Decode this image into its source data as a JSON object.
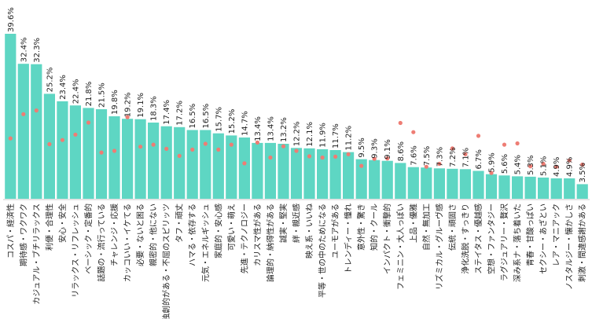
{
  "chart_data": {
    "type": "bar",
    "value_suffix": "%",
    "bar_color": "#5ED6C3",
    "marker_color": "#EE7D74",
    "ylim": [
      0,
      40
    ],
    "grid": false,
    "categories": [
      "コスパ・経済性",
      "期待感・ワクワク",
      "カジュアル・ブチリラックス",
      "利便・合理性",
      "安心・安全",
      "リラックス・リフレッシュ",
      "ベーシック・定番的",
      "話題の・流行っている",
      "チャレンジ・応援",
      "カッコいい・イケてる",
      "必要・ないと困る",
      "親密的・他にない",
      "独創的がある・不屈のスピリッツ",
      "タフ・頑丈",
      "ハマる・依存する",
      "元気・エネルギッシュ",
      "家庭的・安心感",
      "可愛い・萌え",
      "先進・テクノロジー",
      "カリスマ性がある",
      "論理的・納得性がある",
      "誠実・堅実",
      "絆・親近感",
      "映え系・いいね",
      "平等・世の中のためになる",
      "ユーモアがある",
      "トレンディー・憧れ",
      "意外性・驚き",
      "知的・クール",
      "インパクト・衝撃的",
      "フェミニン・大人っぽい",
      "上品・優雅",
      "自然・無加工",
      "リズミカル・グルーヴ感",
      "伝統・頑固さ",
      "浄化洗脱・すっきり",
      "ステイタス・優越感",
      "空想・ファンタジー",
      "ラグジュアリー・贅沢",
      "深み系ナ・落ち着いた",
      "青春・甘酸っぱい",
      "セクシー・あざとい",
      "レア・マニアック",
      "ノスタルジー・懐かしさ",
      "刺激・間違感謝かある"
    ],
    "values": [
      39.6,
      32.4,
      32.3,
      25.2,
      23.4,
      22.4,
      21.8,
      21.5,
      19.8,
      19.2,
      19.1,
      18.3,
      17.4,
      17.2,
      16.5,
      16.5,
      15.7,
      15.2,
      14.7,
      13.4,
      13.4,
      13.2,
      12.2,
      12.1,
      11.9,
      11.7,
      11.2,
      9.5,
      9.3,
      9.1,
      8.6,
      7.6,
      7.5,
      7.3,
      7.2,
      7.1,
      6.7,
      5.9,
      5.6,
      5.4,
      5.3,
      5.1,
      4.9,
      4.9,
      3.5
    ],
    "value_labels": [
      "39.6%",
      "32.4%",
      "32.3%",
      "25.2%",
      "23.4%",
      "22.4%",
      "21.8%",
      "21.5%",
      "19.8%",
      "19.2%",
      "19.1%",
      "18.3%",
      "17.4%",
      "17.2%",
      "16.5%",
      "16.5%",
      "15.7%",
      "15.2%",
      "14.7%",
      "13.4%",
      "13.4%",
      "13.2%",
      "12.2%",
      "12.1%",
      "11.9%",
      "11.7%",
      "11.2%",
      "9.5%",
      "9.3%",
      "9.1%",
      "8.6%",
      "7.6%",
      "7.5%",
      "7.3%",
      "7.2%",
      "7.1%",
      "6.7%",
      "5.9%",
      "5.6%",
      "5.4%",
      "5.3%",
      "5.1%",
      "4.9%",
      "4.9%",
      "3.5%"
    ],
    "markers": [
      14.5,
      20.3,
      21.2,
      13.1,
      14.1,
      15.4,
      18.3,
      11.1,
      11.5,
      19.6,
      12.5,
      13.0,
      12.0,
      10.3,
      11.8,
      13.2,
      11.8,
      13.0,
      8.5,
      13.5,
      9.9,
      12.6,
      11.5,
      10.2,
      9.9,
      10.1,
      10.7,
      7.9,
      9.6,
      9.7,
      18.2,
      16.0,
      7.7,
      8.4,
      12.1,
      10.7,
      15.1,
      6.2,
      13.0,
      13.3,
      7.8,
      8.4,
      7.7,
      9.2,
      8.2
    ]
  }
}
